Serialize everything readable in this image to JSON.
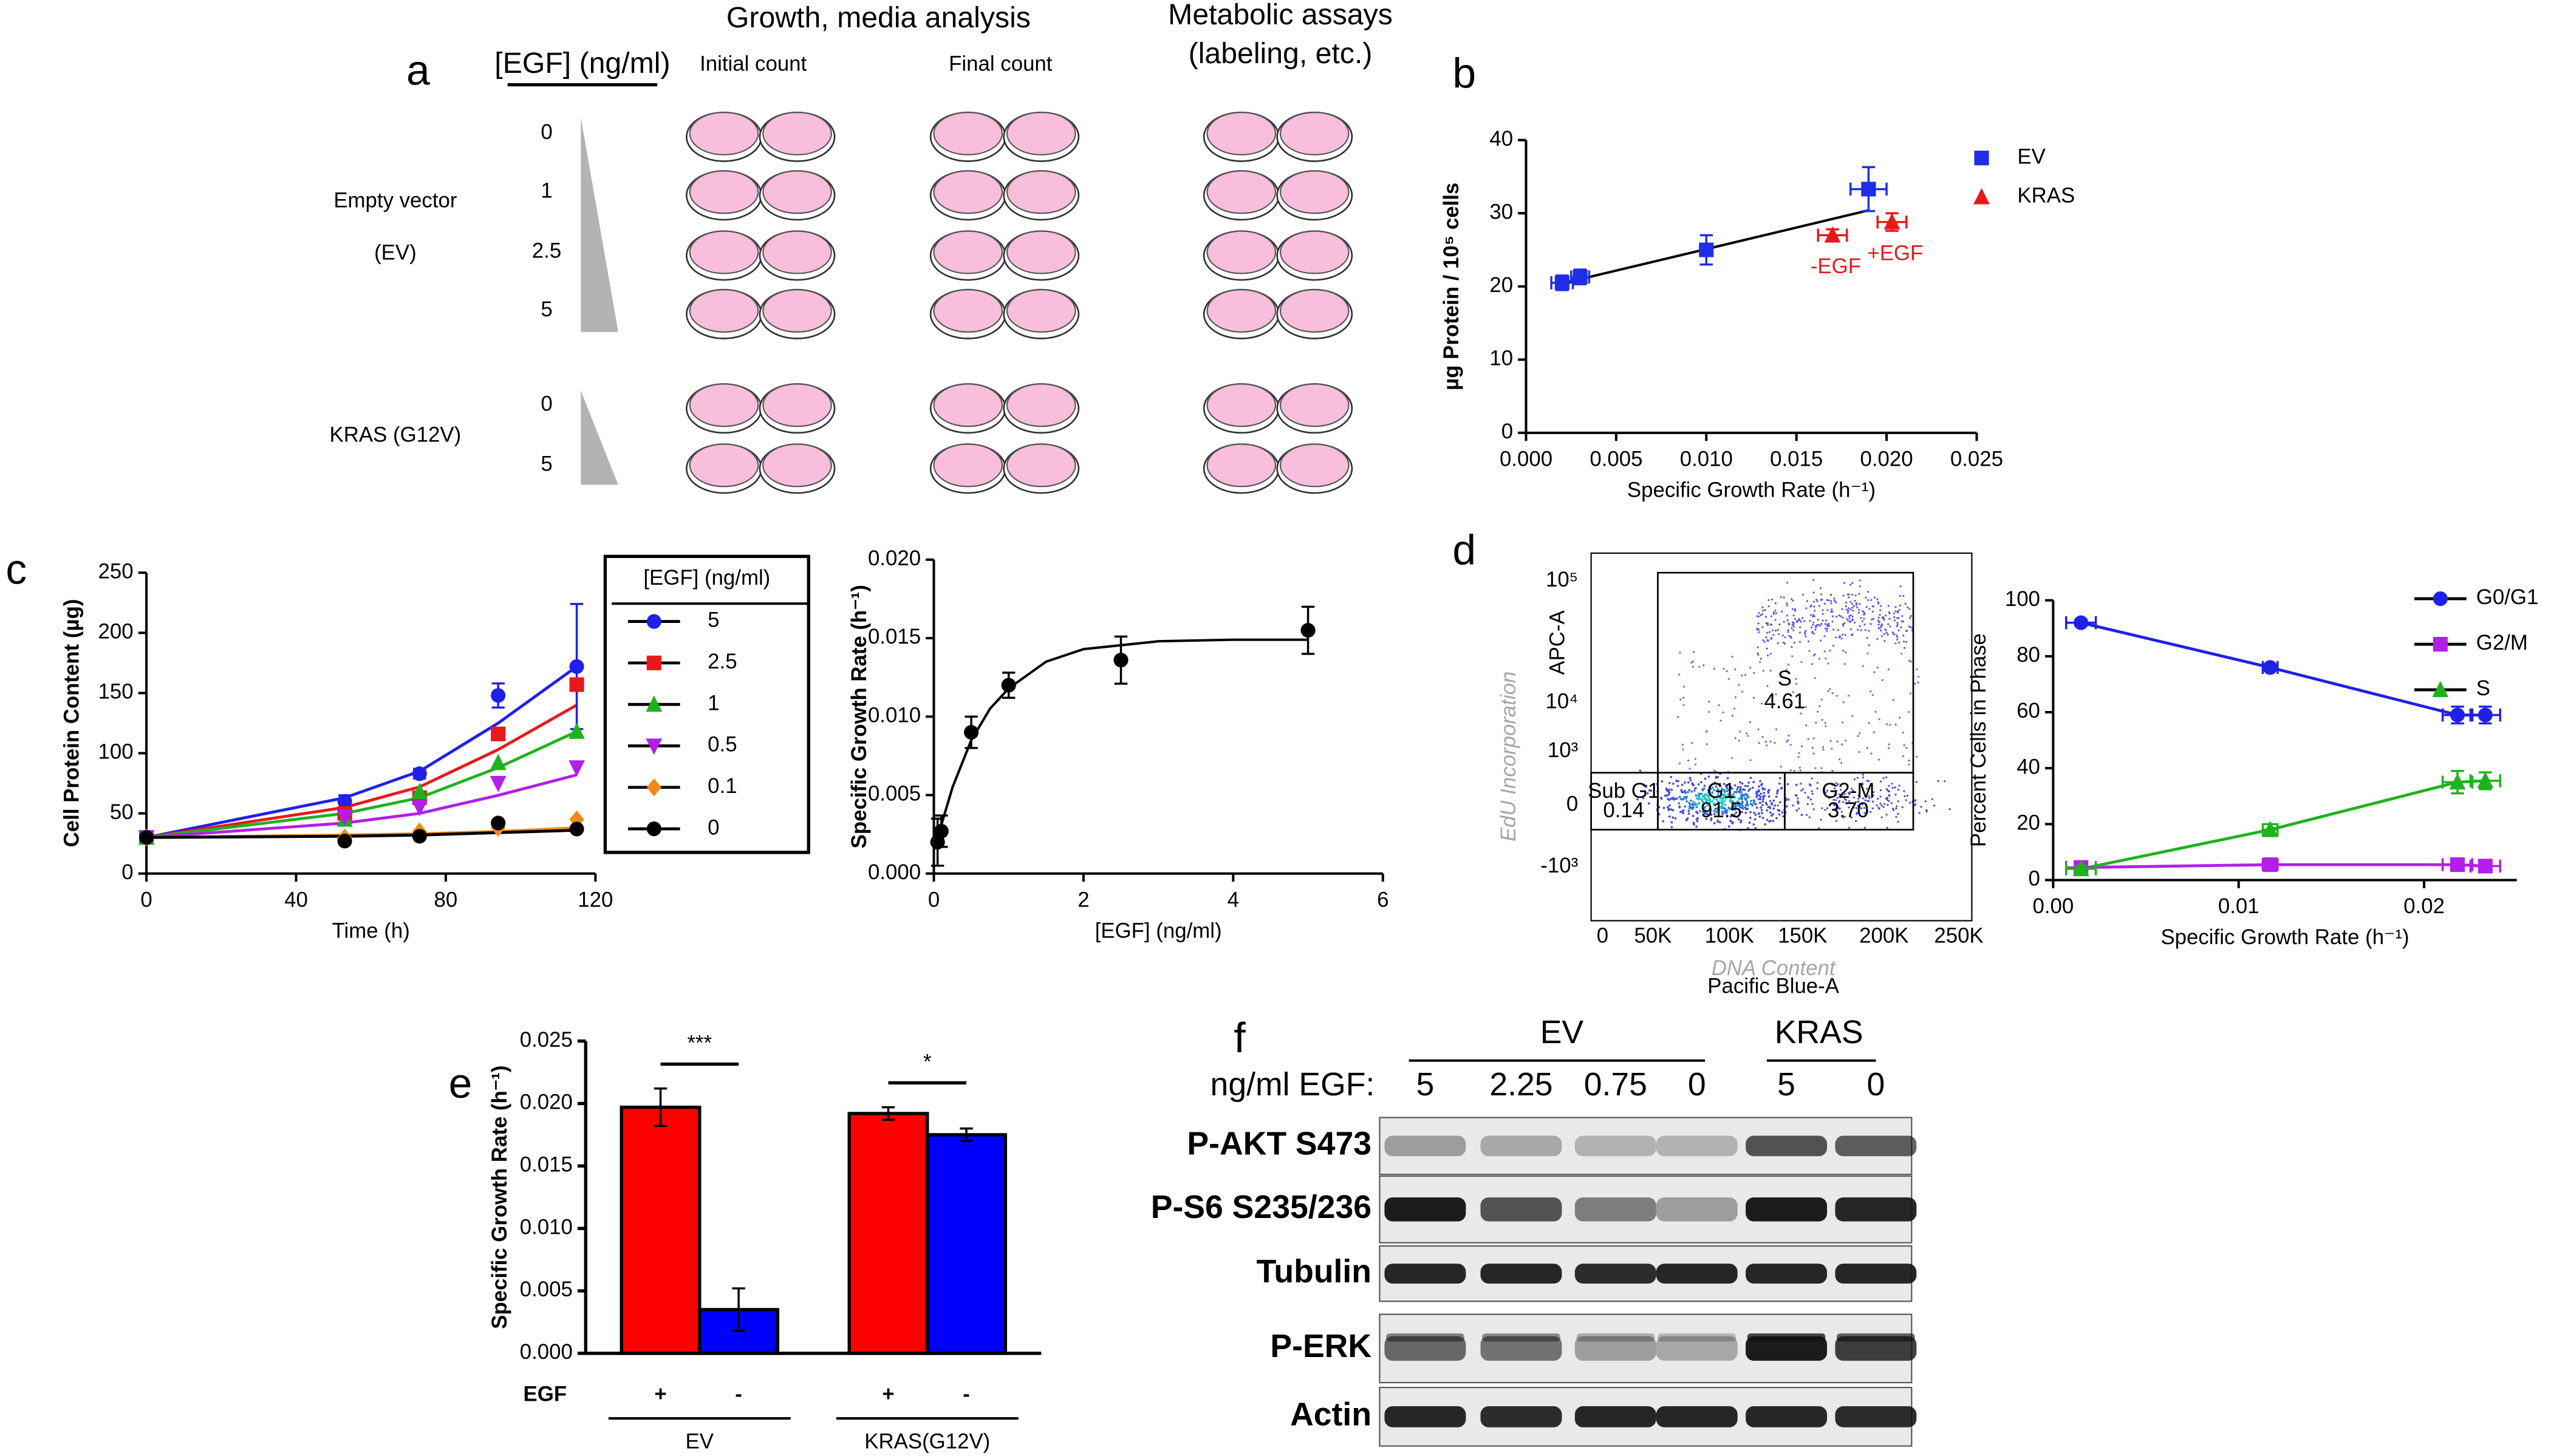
{
  "panel_labels": [
    "a",
    "b",
    "c",
    "d",
    "e",
    "f"
  ],
  "diagram_a": {
    "dose_header": "[EGF] (ng/ml)",
    "growth_header": "Growth, media analysis",
    "subheaders": [
      "Initial count",
      "Final count"
    ],
    "metabolic_header": [
      "Metabolic assays",
      "(labeling, etc.)"
    ],
    "groups": [
      {
        "name": [
          "Empty vector",
          "(EV)"
        ],
        "doses": [
          "0",
          "1",
          "2.5",
          "5"
        ]
      },
      {
        "name": [
          "KRAS (G12V)"
        ],
        "doses": [
          "0",
          "5"
        ]
      }
    ]
  },
  "flow_d": {
    "y_label": "APC-A",
    "x_label": "Pacific Blue-A",
    "y_ticks": [
      "10⁵",
      "10⁴",
      "10³",
      "0",
      "-10³"
    ],
    "x_ticks": [
      "0",
      "50K",
      "100K",
      "150K",
      "200K",
      "250K"
    ],
    "gates": [
      {
        "name": "S",
        "value": "4.61"
      },
      {
        "name": "Sub G1",
        "value": "0.14"
      },
      {
        "name": "G1",
        "value": "91.5"
      },
      {
        "name": "G2-M",
        "value": "3.70"
      }
    ],
    "overlay_y": "EdU Incorporation",
    "overlay_x": "DNA Content"
  },
  "blot_f": {
    "groups": [
      "EV",
      "KRAS"
    ],
    "dose_label": "ng/ml EGF:",
    "lanes": [
      "5",
      "2.25",
      "0.75",
      "0",
      "5",
      "0"
    ],
    "rows": [
      "P-AKT S473",
      "P-S6 S235/236",
      "Tubulin",
      "P-ERK",
      "Actin"
    ]
  },
  "chart_data": [
    {
      "type": "scatter",
      "xlabel": "Specific Growth Rate (h⁻¹)",
      "ylabel": "µg Protein / 10⁵ cells",
      "xlim": [
        0,
        0.025
      ],
      "xticks": [
        {
          "value": 0,
          "label": "0.000"
        },
        0.005,
        {
          "value": 0.01,
          "label": "0.010"
        },
        0.015,
        {
          "value": 0.02,
          "label": "0.020"
        },
        0.025
      ],
      "ylim": [
        0,
        40
      ],
      "yticks": [
        0,
        10,
        20,
        30,
        40
      ],
      "series": [
        {
          "name": "EV",
          "color": "#1f2ee6",
          "marker": "square",
          "x": [
            0.002,
            0.003,
            0.01,
            0.019
          ],
          "values": [
            20.5,
            21.3,
            25,
            33.3
          ],
          "errors": [
            1,
            1,
            2,
            3
          ],
          "x_errors": [
            0.0006,
            0.0005,
            0.0003,
            0.001
          ]
        },
        {
          "name": "KRAS",
          "color": "#e8191b",
          "marker": "triangle",
          "x": [
            0.017,
            0.0203
          ],
          "values": [
            27,
            28.8
          ],
          "errors": [
            0.8,
            1.2
          ],
          "x_errors": [
            0.0008,
            0.0008
          ],
          "point_labels": [
            "-EGF",
            "+EGF"
          ]
        }
      ],
      "fit": {
        "x": [
          0.002,
          0.019
        ],
        "values": [
          20.4,
          30.4
        ]
      }
    },
    {
      "type": "line",
      "xlabel": "Time (h)",
      "ylabel": "Cell Protein Content (µg)",
      "xlim": [
        0,
        120
      ],
      "xticks": [
        0,
        40,
        80,
        120
      ],
      "ylim": [
        0,
        250
      ],
      "yticks": [
        0,
        50,
        100,
        150,
        200,
        250
      ],
      "legend_title": "[EGF]  (ng/ml)",
      "x": [
        0,
        53,
        73,
        94,
        115
      ],
      "series": [
        {
          "name": "5",
          "color": "#2020e8",
          "marker": "circle",
          "values": [
            30,
            60,
            83,
            148,
            172
          ],
          "errors": [
            2,
            5,
            4,
            10,
            52
          ],
          "fit": [
            30,
            63,
            85,
            125,
            172
          ]
        },
        {
          "name": "2.5",
          "color": "#e8191b",
          "marker": "square",
          "values": [
            30,
            50,
            63,
            116,
            157
          ],
          "fit": [
            30,
            55,
            72,
            103,
            140
          ]
        },
        {
          "name": "1",
          "color": "#1db31d",
          "marker": "triangle",
          "values": [
            30,
            45,
            68,
            92,
            118
          ],
          "fit": [
            30,
            50,
            63,
            88,
            118
          ]
        },
        {
          "name": "0.5",
          "color": "#b31ee8",
          "marker": "triangle-down",
          "values": [
            30,
            47,
            55,
            75,
            88
          ],
          "fit": [
            30,
            42,
            50,
            65,
            82
          ]
        },
        {
          "name": "0.1",
          "color": "#f08a1a",
          "marker": "diamond",
          "values": [
            30,
            30,
            35,
            38,
            45
          ],
          "fit": [
            30,
            32,
            33,
            35,
            38
          ]
        },
        {
          "name": "0",
          "color": "#000000",
          "marker": "circle",
          "values": [
            30,
            27,
            31,
            42,
            37
          ],
          "fit": [
            30,
            31,
            32,
            34,
            36
          ]
        }
      ]
    },
    {
      "type": "scatter",
      "xlabel": "[EGF] (ng/ml)",
      "ylabel": "Specific Growth Rate (h⁻¹)",
      "xlim": [
        0,
        6
      ],
      "xticks": [
        0,
        2,
        4,
        6
      ],
      "ylim": [
        0,
        0.02
      ],
      "yticks": [
        {
          "value": 0,
          "label": "0.000"
        },
        0.005,
        {
          "value": 0.01,
          "label": "0.010"
        },
        0.015,
        {
          "value": 0.02,
          "label": "0.020"
        }
      ],
      "series": [
        {
          "color": "#000000",
          "marker": "circle",
          "x": [
            0.05,
            0.1,
            0.5,
            1,
            2.5,
            5
          ],
          "values": [
            0.002,
            0.0027,
            0.009,
            0.012,
            0.0136,
            0.0155
          ],
          "errors": [
            0.0015,
            0.001,
            0.001,
            0.0008,
            0.0015,
            0.0015
          ]
        }
      ],
      "fit": {
        "x": [
          0,
          0.25,
          0.5,
          0.75,
          1,
          1.5,
          2,
          3,
          4,
          5
        ],
        "values": [
          0.0015,
          0.0055,
          0.0085,
          0.0105,
          0.0118,
          0.0135,
          0.0143,
          0.0148,
          0.0149,
          0.0149
        ]
      }
    },
    {
      "type": "line",
      "xlabel": "Specific Growth Rate (h⁻¹)",
      "ylabel": "Percent Cells in Phase",
      "xlim": [
        0,
        0.025
      ],
      "xticks": [
        {
          "value": 0,
          "label": "0.00"
        },
        0.01,
        0.02
      ],
      "ylim": [
        0,
        100
      ],
      "yticks": [
        0,
        20,
        40,
        60,
        80,
        100
      ],
      "x": [
        0.0015,
        0.0117,
        0.0218,
        0.0233
      ],
      "series": [
        {
          "name": "G0/G1",
          "color": "#2020e8",
          "marker": "circle",
          "values": [
            92,
            76,
            59,
            59
          ],
          "errors": [
            1,
            1,
            3,
            3
          ],
          "x_errors": [
            0.0008,
            0.0004,
            0.0008,
            0.0008
          ]
        },
        {
          "name": "G2/M",
          "color": "#b31ee8",
          "marker": "square",
          "values": [
            4.5,
            5.5,
            5.5,
            5
          ],
          "errors": [
            1,
            1,
            1,
            1
          ],
          "x_errors": [
            0.0008,
            0.0004,
            0.0008,
            0.0008
          ]
        },
        {
          "name": "S",
          "color": "#1db31d",
          "marker": "triangle",
          "values": [
            4,
            18,
            35,
            35.5
          ],
          "errors": [
            1,
            2,
            4,
            3
          ],
          "x_errors": [
            0.0008,
            0.0004,
            0.0008,
            0.0008
          ]
        }
      ]
    },
    {
      "type": "bar",
      "ylabel": "Specific Growth Rate (h⁻¹)",
      "ylim": [
        0,
        0.025
      ],
      "yticks": [
        {
          "value": 0,
          "label": "0.000"
        },
        0.005,
        {
          "value": 0.01,
          "label": "0.010"
        },
        0.015,
        {
          "value": 0.02,
          "label": "0.020"
        },
        0.025
      ],
      "categories": [
        "EV",
        "KRAS(G12V)"
      ],
      "series_label": "EGF",
      "series": [
        {
          "name": "+",
          "color": "#ff0000",
          "values": [
            0.0197,
            0.0192
          ],
          "errors": [
            0.0015,
            0.0005
          ]
        },
        {
          "name": "-",
          "color": "#0000ff",
          "values": [
            0.0035,
            0.0175
          ],
          "errors": [
            0.0017,
            0.0005
          ]
        }
      ],
      "significance": [
        "***",
        "*"
      ]
    }
  ]
}
